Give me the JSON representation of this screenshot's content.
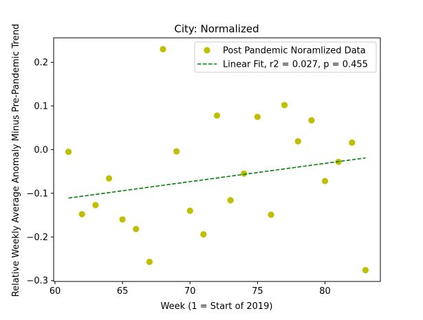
{
  "chart_data": {
    "type": "scatter",
    "title": "City: Normalized",
    "xlabel": "Week (1 = Start of 2019)",
    "ylabel": "Relative Weekly Average Anomaly Minus Pre-Pandemic Trend",
    "xlim": [
      59.9,
      84.1
    ],
    "ylim": [
      -0.302,
      0.256
    ],
    "xticks": [
      60,
      65,
      70,
      75,
      80
    ],
    "xtick_labels": [
      "60",
      "65",
      "70",
      "75",
      "80"
    ],
    "yticks": [
      -0.3,
      -0.2,
      -0.1,
      0.0,
      0.1,
      0.2
    ],
    "ytick_labels": [
      "−0.3",
      "−0.2",
      "−0.1",
      "0.0",
      "0.1",
      "0.2"
    ],
    "grid": false,
    "legend_position": "top-right",
    "series": [
      {
        "name": "Post Pandemic Noramlized Data",
        "kind": "scatter",
        "color": "#bfbf00",
        "x": [
          61,
          62,
          63,
          64,
          65,
          66,
          67,
          68,
          69,
          70,
          71,
          72,
          73,
          74,
          75,
          76,
          77,
          78,
          79,
          80,
          81,
          82,
          83
        ],
        "y": [
          -0.005,
          -0.148,
          -0.127,
          -0.066,
          -0.16,
          -0.182,
          -0.257,
          0.23,
          -0.004,
          -0.14,
          -0.194,
          0.078,
          -0.116,
          -0.055,
          0.075,
          -0.149,
          0.102,
          0.019,
          0.067,
          -0.072,
          -0.028,
          0.016,
          -0.276
        ]
      },
      {
        "name": "Linear Fit, r2 = 0.027, p = 0.455",
        "kind": "line",
        "style": "dashed",
        "color": "#008000",
        "x": [
          61,
          83
        ],
        "y": [
          -0.111,
          -0.019
        ]
      }
    ]
  }
}
